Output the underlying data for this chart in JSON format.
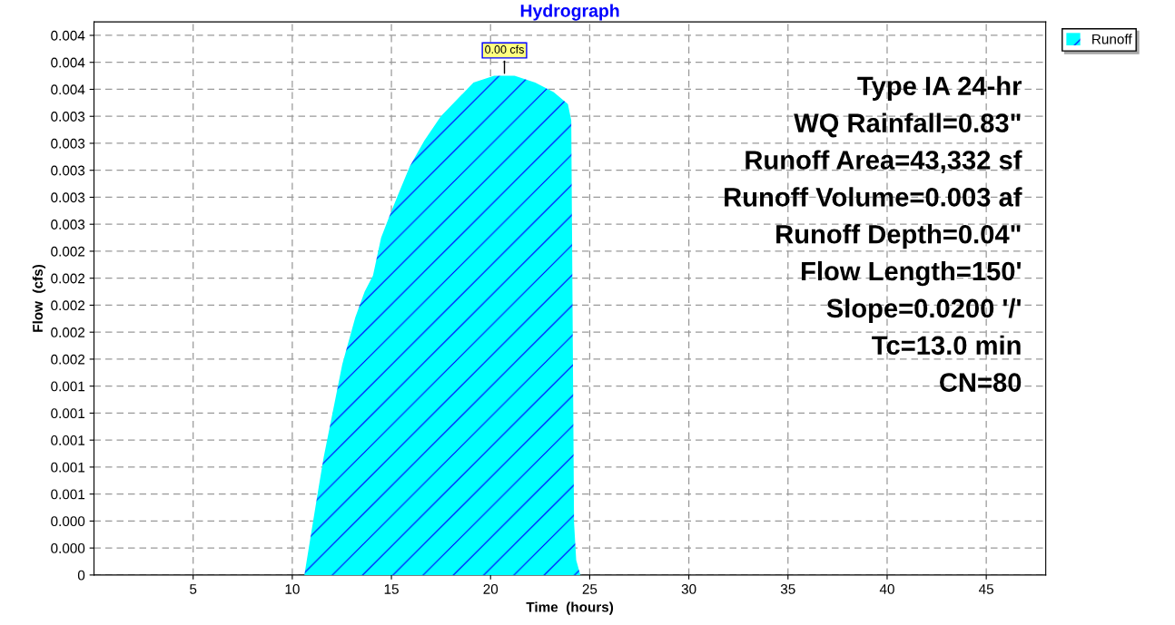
{
  "chart_data": {
    "type": "area",
    "title": "Hydrograph",
    "xlabel": "Time  (hours)",
    "ylabel": "Flow  (cfs)",
    "x": [
      0,
      10.61,
      11.23,
      11.58,
      12.52,
      13.18,
      13.65,
      14.07,
      14.48,
      14.9,
      15.31,
      15.93,
      16.66,
      17.49,
      19.14,
      20.18,
      21.21,
      22.25,
      23.18,
      23.9,
      24.07,
      24.21,
      24.32,
      24.53,
      48
    ],
    "series": [
      {
        "name": "Runoff",
        "color": "#00ffff",
        "values": [
          0,
          0,
          0.00056,
          0.00087,
          0.00156,
          0.00191,
          0.0021,
          0.00222,
          0.0025,
          0.00266,
          0.00281,
          0.00303,
          0.00322,
          0.0034,
          0.00365,
          0.0037,
          0.0037,
          0.00365,
          0.00358,
          0.00349,
          0.00337,
          0.00039,
          0.00011,
          0,
          0
        ]
      }
    ],
    "xlim": [
      0,
      48
    ],
    "xticks": [
      5,
      10,
      15,
      20,
      25,
      30,
      35,
      40,
      45
    ],
    "ylim": [
      0,
      0.0041
    ],
    "yticks": [
      0,
      {
        "value": 0.0002,
        "label": "0.000"
      },
      {
        "value": 0.0004,
        "label": "0.000"
      },
      {
        "value": 0.0006,
        "label": "0.001"
      },
      {
        "value": 0.0008,
        "label": "0.001"
      },
      {
        "value": 0.001,
        "label": "0.001"
      },
      {
        "value": 0.0012,
        "label": "0.001"
      },
      {
        "value": 0.0014,
        "label": "0.001"
      },
      {
        "value": 0.0016,
        "label": "0.002"
      },
      {
        "value": 0.0018,
        "label": "0.002"
      },
      {
        "value": 0.002,
        "label": "0.002"
      },
      {
        "value": 0.0022,
        "label": "0.002"
      },
      {
        "value": 0.0024,
        "label": "0.002"
      },
      {
        "value": 0.0026,
        "label": "0.003"
      },
      {
        "value": 0.0028,
        "label": "0.003"
      },
      {
        "value": 0.003,
        "label": "0.003"
      },
      {
        "value": 0.0032,
        "label": "0.003"
      },
      {
        "value": 0.0034,
        "label": "0.003"
      },
      {
        "value": 0.0036,
        "label": "0.004"
      },
      {
        "value": 0.0038,
        "label": "0.004"
      },
      {
        "value": 0.004,
        "label": "0.004"
      }
    ],
    "grid": true,
    "legend": "top right",
    "annotations": [
      {
        "text": "0.00 cfs",
        "x": 20.7,
        "y": 0.0037
      },
      "Type IA 24-hr",
      "WQ Rainfall=0.83\"",
      "Runoff Area=43,332 sf",
      "Runoff Volume=0.003 af",
      "Runoff Depth=0.04\"",
      "Flow Length=150'",
      "Slope=0.0200 '/'",
      "Tc=13.0 min",
      "CN=80"
    ]
  }
}
